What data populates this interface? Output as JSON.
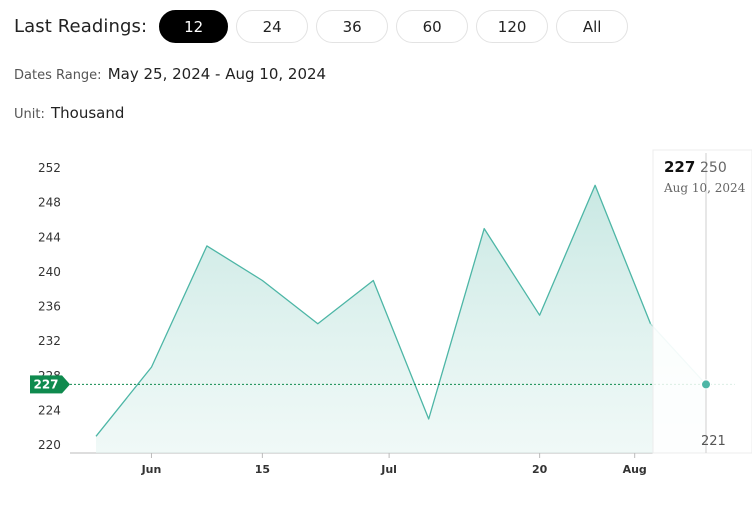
{
  "header": {
    "label": "Last Readings:",
    "buttons": [
      {
        "label": "12",
        "active": true
      },
      {
        "label": "24",
        "active": false
      },
      {
        "label": "36",
        "active": false
      },
      {
        "label": "60",
        "active": false
      },
      {
        "label": "120",
        "active": false
      },
      {
        "label": "All",
        "active": false
      }
    ]
  },
  "dates_range": {
    "label": "Dates Range:",
    "value": "May 25, 2024 - Aug 10, 2024"
  },
  "unit": {
    "label": "Unit:",
    "value": "Thousand"
  },
  "colors": {
    "line": "#4db6a6",
    "fill": "#cfeae6",
    "badge": "#0f8a4e",
    "active_button": "#000000"
  },
  "chart_data": {
    "type": "area",
    "x": [
      "2024-05-25",
      "2024-06-01",
      "2024-06-08",
      "2024-06-15",
      "2024-06-22",
      "2024-06-29",
      "2024-07-06",
      "2024-07-13",
      "2024-07-20",
      "2024-07-27",
      "2024-08-03",
      "2024-08-10"
    ],
    "y": [
      221,
      229,
      243,
      239,
      234,
      239,
      223,
      245,
      235,
      250,
      234,
      227
    ],
    "ylim": [
      220,
      253
    ],
    "yticks": [
      220,
      224,
      228,
      232,
      236,
      240,
      244,
      248,
      252
    ],
    "xticks": [
      {
        "date": "2024-06-01",
        "label": "Jun"
      },
      {
        "date": "2024-06-15",
        "label": "15"
      },
      {
        "date": "2024-07-01",
        "label": "Jul"
      },
      {
        "date": "2024-07-20",
        "label": "20"
      },
      {
        "date": "2024-08-01",
        "label": "Aug"
      }
    ],
    "current": {
      "value": "227",
      "date": "Aug 10, 2024",
      "max_label": "250",
      "min_label": "221"
    },
    "badge": "227"
  }
}
